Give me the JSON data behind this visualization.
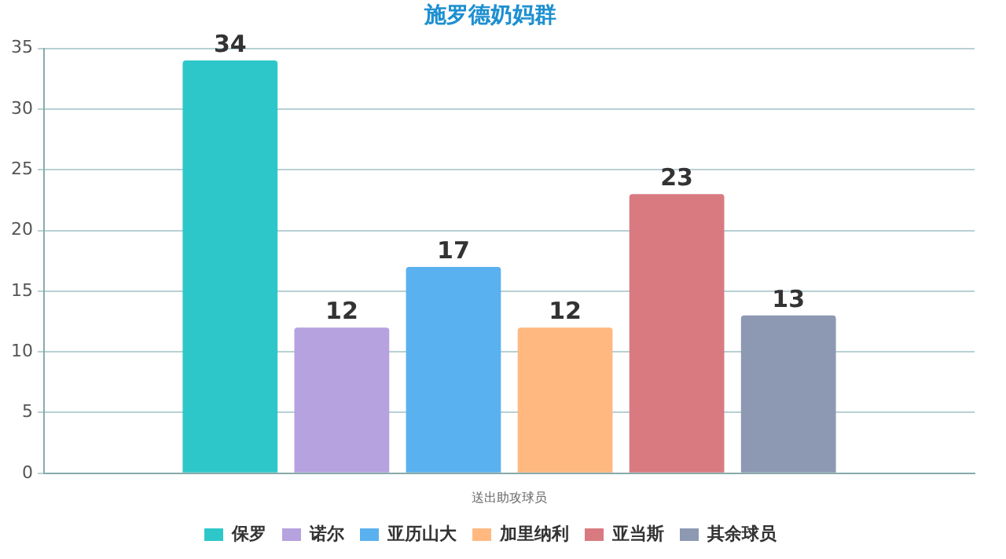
{
  "chart_data": {
    "type": "bar",
    "title": "施罗德奶妈群",
    "categories": [
      "送出助攻球员"
    ],
    "series": [
      {
        "name": "保罗",
        "color": "#2ec7c9",
        "values": [
          34
        ]
      },
      {
        "name": "诺尔",
        "color": "#b6a2de",
        "values": [
          12
        ]
      },
      {
        "name": "亚历山大",
        "color": "#5ab1ef",
        "values": [
          17
        ]
      },
      {
        "name": "加里纳利",
        "color": "#ffb980",
        "values": [
          12
        ]
      },
      {
        "name": "亚当斯",
        "color": "#d87a80",
        "values": [
          23
        ]
      },
      {
        "name": "其余球员",
        "color": "#8d98b3",
        "values": [
          13
        ]
      }
    ],
    "ylim": [
      0,
      35
    ],
    "yticks": [
      0,
      5,
      10,
      15,
      20,
      25,
      30,
      35
    ],
    "grid": "y",
    "legend": "bottom",
    "data_labels": true
  }
}
